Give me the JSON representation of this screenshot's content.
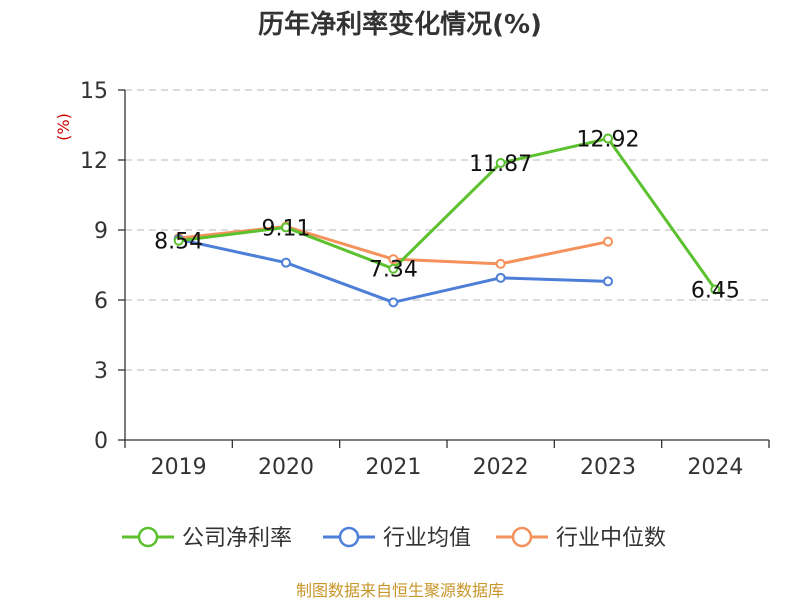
{
  "chart_data": {
    "type": "line",
    "title": "历年净利率变化情况(%)",
    "ylabel": "(%)",
    "xlabel": "",
    "categories": [
      "2019",
      "2020",
      "2021",
      "2022",
      "2023",
      "2024"
    ],
    "ylim": [
      0,
      15
    ],
    "yticks": [
      0,
      3,
      6,
      9,
      12,
      15
    ],
    "grid": "horizontal dashed",
    "legend_position": "bottom",
    "series": [
      {
        "name": "公司净利率",
        "color": "#5cc12e",
        "values": [
          8.54,
          9.11,
          7.34,
          11.87,
          12.92,
          6.45
        ],
        "labels": [
          "8.54",
          "9.11",
          "7.34",
          "11.87",
          "12.92",
          "6.45"
        ]
      },
      {
        "name": "行业均值",
        "color": "#4d7fd9",
        "values": [
          8.6,
          7.6,
          5.9,
          6.95,
          6.8,
          null
        ]
      },
      {
        "name": "行业中位数",
        "color": "#f5915a",
        "values": [
          8.65,
          9.15,
          7.75,
          7.55,
          8.5,
          null
        ]
      }
    ]
  },
  "source_text": "制图数据来自恒生聚源数据库"
}
